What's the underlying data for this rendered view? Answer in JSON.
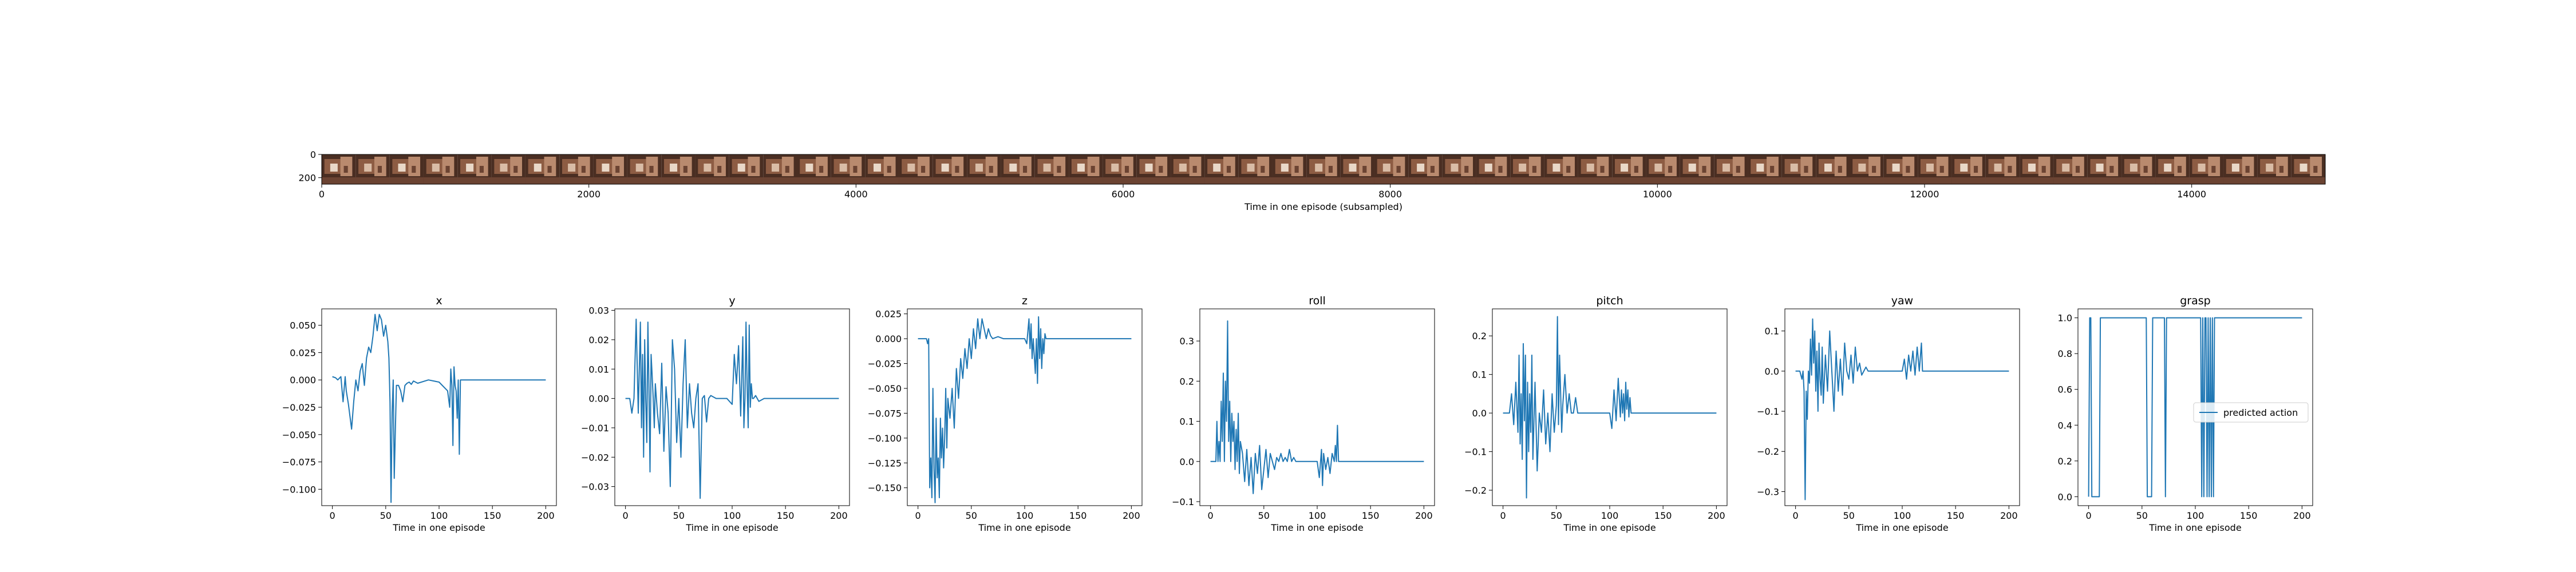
{
  "image_strip": {
    "xlabel": "Time in one episode (subsampled)",
    "xticks": [
      "0",
      "2000",
      "4000",
      "6000",
      "8000",
      "10000",
      "12000",
      "14000"
    ],
    "yticks": [
      "0",
      "200"
    ],
    "xlim": [
      0,
      15000
    ],
    "ylim": [
      0,
      256
    ],
    "frame_colors": [
      "#4a2e22",
      "#8d5c43",
      "#b98a6e",
      "#d9bca6",
      "#6b4332",
      "#e9d8c8"
    ]
  },
  "chart_data": [
    {
      "type": "line",
      "title": "x",
      "xlabel": "Time in one episode",
      "xlim": [
        -10,
        210
      ],
      "ylim": [
        -0.115,
        0.065
      ],
      "xticks": [
        "0",
        "50",
        "100",
        "150",
        "200"
      ],
      "yticks": [
        "0.050",
        "0.025",
        "0.000",
        "−0.025",
        "−0.050",
        "−0.075",
        "−0.100"
      ],
      "ytick_values": [
        0.05,
        0.025,
        0.0,
        -0.025,
        -0.05,
        -0.075,
        -0.1
      ],
      "series": [
        {
          "x": [
            0,
            3,
            5,
            8,
            10,
            12,
            13,
            15,
            18,
            20,
            22,
            24,
            26,
            28,
            30,
            32,
            34,
            36,
            38,
            40,
            42,
            44,
            46,
            48,
            50,
            52,
            53,
            54,
            55,
            56,
            57,
            58,
            60,
            62,
            64,
            66,
            68,
            70,
            72,
            74,
            76,
            80,
            90,
            100,
            108,
            110,
            111,
            112,
            113,
            114,
            115,
            116,
            117,
            118,
            119,
            120,
            125,
            150,
            200
          ],
          "y": [
            0.003,
            0.002,
            0.0,
            0.003,
            -0.02,
            0.003,
            -0.01,
            -0.022,
            -0.045,
            -0.02,
            0.0,
            -0.01,
            0.008,
            0.015,
            -0.005,
            0.02,
            0.03,
            0.025,
            0.04,
            0.06,
            0.045,
            0.06,
            0.055,
            0.04,
            0.05,
            0.035,
            0.02,
            -0.02,
            -0.112,
            -0.03,
            0.0,
            -0.09,
            -0.005,
            -0.005,
            -0.01,
            -0.02,
            -0.005,
            -0.003,
            -0.002,
            -0.004,
            -0.001,
            -0.003,
            0.0,
            -0.002,
            -0.01,
            -0.025,
            0.01,
            -0.005,
            -0.06,
            0.012,
            -0.005,
            -0.01,
            -0.035,
            0.0,
            -0.068,
            0.0,
            0.0,
            0.0,
            0.0
          ]
        }
      ]
    },
    {
      "type": "line",
      "title": "y",
      "xlabel": "Time in one episode",
      "xlim": [
        -10,
        210
      ],
      "ylim": [
        -0.0365,
        0.0305
      ],
      "xticks": [
        "0",
        "50",
        "100",
        "150",
        "200"
      ],
      "yticks": [
        "0.03",
        "0.02",
        "0.01",
        "0.00",
        "−0.01",
        "−0.02",
        "−0.03"
      ],
      "ytick_values": [
        0.03,
        0.02,
        0.01,
        0.0,
        -0.01,
        -0.02,
        -0.03
      ],
      "series": [
        {
          "x": [
            0,
            4,
            6,
            8,
            10,
            12,
            14,
            15,
            16,
            17,
            18,
            19,
            20,
            21,
            22,
            23,
            24,
            25,
            26,
            27,
            28,
            30,
            32,
            34,
            36,
            38,
            40,
            42,
            44,
            46,
            48,
            50,
            52,
            54,
            56,
            58,
            60,
            62,
            64,
            66,
            68,
            70,
            72,
            74,
            76,
            78,
            80,
            85,
            90,
            95,
            100,
            102,
            104,
            106,
            108,
            110,
            111,
            112,
            113,
            114,
            115,
            116,
            117,
            118,
            119,
            120,
            122,
            125,
            130,
            200
          ],
          "y": [
            0.0,
            0.0,
            -0.005,
            0.0,
            0.027,
            -0.005,
            0.026,
            -0.01,
            0.015,
            -0.02,
            0.02,
            0.0,
            -0.015,
            0.026,
            0.005,
            -0.025,
            0.015,
            0.008,
            0.0,
            -0.01,
            0.005,
            -0.005,
            -0.012,
            0.012,
            -0.018,
            0.004,
            -0.005,
            -0.03,
            0.02,
            0.01,
            -0.015,
            0.0,
            -0.02,
            0.005,
            0.02,
            -0.01,
            0.005,
            -0.005,
            -0.01,
            0.0,
            0.005,
            -0.034,
            0.0,
            0.001,
            -0.008,
            0.0,
            0.001,
            0.0,
            0.0,
            0.0,
            -0.002,
            0.015,
            0.005,
            0.018,
            -0.006,
            0.021,
            -0.01,
            0.0,
            0.026,
            0.005,
            -0.01,
            0.025,
            -0.003,
            0.005,
            0.0,
            0.0,
            0.001,
            -0.001,
            0.0,
            0.0
          ]
        }
      ]
    },
    {
      "type": "line",
      "title": "z",
      "xlabel": "Time in one episode",
      "xlim": [
        -10,
        210
      ],
      "ylim": [
        -0.168,
        0.03
      ],
      "xticks": [
        "0",
        "50",
        "100",
        "150",
        "200"
      ],
      "yticks": [
        "0.025",
        "0.000",
        "−0.025",
        "−0.050",
        "−0.075",
        "−0.100",
        "−0.125",
        "−0.150"
      ],
      "ytick_values": [
        0.025,
        0.0,
        -0.025,
        -0.05,
        -0.075,
        -0.1,
        -0.125,
        -0.15
      ],
      "series": [
        {
          "x": [
            0,
            3,
            5,
            8,
            9,
            10,
            11,
            12,
            13,
            14,
            15,
            16,
            17,
            18,
            19,
            20,
            21,
            22,
            23,
            24,
            25,
            26,
            27,
            28,
            30,
            32,
            34,
            36,
            38,
            40,
            42,
            44,
            46,
            48,
            50,
            52,
            54,
            56,
            58,
            60,
            62,
            64,
            66,
            68,
            70,
            75,
            80,
            90,
            100,
            102,
            104,
            105,
            106,
            107,
            108,
            110,
            111,
            112,
            113,
            114,
            115,
            116,
            117,
            118,
            119,
            120,
            125,
            200
          ],
          "y": [
            0.0,
            0.0,
            0.0,
            0.0,
            -0.005,
            0.0,
            -0.15,
            -0.12,
            -0.16,
            -0.05,
            -0.13,
            -0.165,
            -0.08,
            -0.14,
            -0.12,
            -0.16,
            -0.08,
            -0.12,
            -0.09,
            -0.13,
            -0.1,
            -0.05,
            -0.11,
            -0.06,
            -0.08,
            -0.05,
            -0.09,
            -0.03,
            -0.06,
            -0.02,
            -0.04,
            -0.01,
            -0.03,
            0.0,
            -0.02,
            0.01,
            -0.01,
            0.02,
            0.0,
            0.02,
            0.01,
            0.0,
            0.01,
            0.003,
            0.0,
            0.002,
            0.0,
            0.0,
            0.0,
            -0.005,
            0.02,
            -0.01,
            0.015,
            -0.02,
            0.0,
            -0.035,
            0.0,
            -0.045,
            0.022,
            -0.02,
            0.01,
            -0.03,
            0.0,
            -0.015,
            0.005,
            0.0,
            0.0,
            0.0
          ]
        }
      ]
    },
    {
      "type": "line",
      "title": "roll",
      "xlabel": "Time in one episode",
      "xlim": [
        -10,
        210
      ],
      "ylim": [
        -0.11,
        0.38
      ],
      "xticks": [
        "0",
        "50",
        "100",
        "150",
        "200"
      ],
      "yticks": [
        "0.3",
        "0.2",
        "0.1",
        "0.0",
        "−0.1"
      ],
      "ytick_values": [
        0.3,
        0.2,
        0.1,
        0.0,
        -0.1
      ],
      "series": [
        {
          "x": [
            0,
            3,
            5,
            6,
            7,
            8,
            9,
            10,
            11,
            12,
            13,
            14,
            15,
            16,
            17,
            18,
            19,
            20,
            21,
            22,
            23,
            24,
            25,
            26,
            27,
            28,
            30,
            32,
            34,
            36,
            38,
            40,
            42,
            44,
            46,
            48,
            50,
            52,
            54,
            56,
            58,
            60,
            62,
            64,
            66,
            68,
            70,
            72,
            74,
            76,
            78,
            80,
            85,
            90,
            95,
            100,
            102,
            104,
            105,
            106,
            108,
            110,
            112,
            114,
            116,
            117,
            118,
            119,
            120,
            125,
            200
          ],
          "y": [
            0.0,
            0.0,
            0.0,
            0.1,
            0.0,
            0.05,
            0.0,
            0.15,
            0.05,
            0.22,
            0.0,
            0.2,
            0.1,
            0.35,
            0.05,
            0.15,
            0.0,
            0.12,
            0.05,
            0.1,
            -0.02,
            0.08,
            0.0,
            0.12,
            -0.03,
            0.05,
            0.02,
            -0.05,
            0.03,
            -0.06,
            0.01,
            -0.08,
            0.02,
            -0.03,
            0.04,
            -0.07,
            -0.02,
            0.03,
            -0.04,
            0.02,
            0.0,
            -0.02,
            0.01,
            0.0,
            0.02,
            0.0,
            0.01,
            0.0,
            0.03,
            0.0,
            0.01,
            0.0,
            0.0,
            0.0,
            0.0,
            0.0,
            -0.04,
            0.03,
            -0.06,
            0.02,
            -0.02,
            0.01,
            -0.03,
            0.02,
            0.0,
            0.04,
            0.0,
            0.09,
            0.0,
            0.0,
            0.0
          ]
        }
      ]
    },
    {
      "type": "line",
      "title": "pitch",
      "xlabel": "Time in one episode",
      "xlim": [
        -10,
        210
      ],
      "ylim": [
        -0.24,
        0.27
      ],
      "xticks": [
        "0",
        "50",
        "100",
        "150",
        "200"
      ],
      "yticks": [
        "0.2",
        "0.1",
        "0.0",
        "−0.1",
        "−0.2"
      ],
      "ytick_values": [
        0.2,
        0.1,
        0.0,
        -0.1,
        -0.2
      ],
      "series": [
        {
          "x": [
            0,
            4,
            6,
            8,
            10,
            12,
            14,
            15,
            16,
            17,
            18,
            19,
            20,
            21,
            22,
            23,
            24,
            25,
            26,
            27,
            28,
            30,
            32,
            34,
            36,
            38,
            40,
            42,
            44,
            46,
            48,
            50,
            51,
            52,
            53,
            54,
            55,
            56,
            58,
            60,
            62,
            64,
            66,
            68,
            70,
            75,
            80,
            90,
            100,
            102,
            104,
            106,
            108,
            110,
            111,
            112,
            113,
            114,
            115,
            116,
            117,
            118,
            119,
            120,
            125,
            200
          ],
          "y": [
            0.0,
            0.0,
            0.0,
            0.05,
            -0.03,
            0.08,
            -0.05,
            0.15,
            -0.08,
            0.05,
            -0.12,
            0.18,
            -0.02,
            0.15,
            -0.22,
            0.08,
            -0.1,
            0.05,
            -0.05,
            0.15,
            -0.12,
            0.08,
            -0.15,
            0.0,
            -0.05,
            0.06,
            -0.08,
            0.0,
            -0.1,
            0.05,
            -0.05,
            0.02,
            0.25,
            -0.03,
            0.15,
            0.05,
            -0.05,
            0.02,
            0.1,
            0.0,
            0.05,
            0.0,
            0.0,
            0.04,
            0.0,
            0.0,
            0.0,
            0.0,
            0.0,
            -0.04,
            0.06,
            -0.02,
            0.09,
            -0.01,
            0.06,
            0.0,
            0.05,
            -0.02,
            0.08,
            0.01,
            0.06,
            -0.01,
            0.04,
            0.0,
            0.0,
            0.0
          ]
        }
      ]
    },
    {
      "type": "line",
      "title": "yaw",
      "xlabel": "Time in one episode",
      "xlim": [
        -10,
        210
      ],
      "ylim": [
        -0.335,
        0.155
      ],
      "xticks": [
        "0",
        "50",
        "100",
        "150",
        "200"
      ],
      "yticks": [
        "0.1",
        "0.0",
        "−0.1",
        "−0.2",
        "−0.3"
      ],
      "ytick_values": [
        0.1,
        0.0,
        -0.1,
        -0.2,
        -0.3
      ],
      "series": [
        {
          "x": [
            0,
            4,
            6,
            7,
            8,
            9,
            10,
            11,
            12,
            13,
            14,
            15,
            16,
            17,
            18,
            19,
            20,
            21,
            22,
            23,
            24,
            25,
            26,
            28,
            30,
            32,
            34,
            36,
            38,
            40,
            42,
            44,
            46,
            48,
            50,
            52,
            54,
            56,
            58,
            60,
            62,
            64,
            66,
            68,
            70,
            75,
            80,
            90,
            100,
            102,
            104,
            106,
            108,
            110,
            112,
            114,
            116,
            118,
            119,
            120,
            125,
            200
          ],
          "y": [
            0.0,
            0.0,
            -0.02,
            0.0,
            -0.05,
            -0.32,
            -0.05,
            -0.12,
            0.0,
            -0.03,
            0.08,
            -0.01,
            0.13,
            0.02,
            0.1,
            -0.05,
            0.05,
            -0.1,
            0.07,
            -0.02,
            -0.06,
            0.06,
            -0.08,
            0.04,
            -0.05,
            0.1,
            0.0,
            -0.1,
            0.05,
            -0.05,
            0.03,
            -0.06,
            0.07,
            0.0,
            -0.02,
            0.04,
            -0.03,
            0.06,
            0.0,
            0.02,
            -0.01,
            0.0,
            0.01,
            0.0,
            0.0,
            0.0,
            0.0,
            0.0,
            0.0,
            0.03,
            -0.02,
            0.04,
            0.0,
            0.05,
            -0.01,
            0.06,
            0.0,
            0.07,
            0.0,
            0.0,
            0.0,
            0.0
          ]
        }
      ]
    },
    {
      "type": "line",
      "title": "grasp",
      "xlabel": "Time in one episode",
      "xlim": [
        -10,
        210
      ],
      "ylim": [
        -0.05,
        1.05
      ],
      "xticks": [
        "0",
        "50",
        "100",
        "150",
        "200"
      ],
      "yticks": [
        "1.0",
        "0.8",
        "0.6",
        "0.4",
        "0.2",
        "0.0"
      ],
      "ytick_values": [
        1.0,
        0.8,
        0.6,
        0.4,
        0.2,
        0.0
      ],
      "legend": {
        "label": "predicted action",
        "position": "center-right"
      },
      "series": [
        {
          "name": "predicted action",
          "x": [
            0,
            1,
            2,
            3,
            4,
            10,
            11,
            12,
            54,
            55,
            56,
            59,
            60,
            61,
            71,
            72,
            73,
            75,
            76,
            77,
            105,
            106,
            107,
            108,
            109,
            110,
            111,
            112,
            113,
            114,
            115,
            116,
            117,
            118,
            119,
            120,
            200
          ],
          "y": [
            0,
            1,
            1,
            0,
            0,
            0,
            1,
            1,
            1,
            0,
            0,
            0,
            1,
            1,
            1,
            0,
            1,
            1,
            1,
            1,
            1,
            0,
            1,
            0,
            1,
            1,
            0,
            1,
            0,
            1,
            0,
            1,
            0,
            1,
            1,
            1,
            1
          ]
        }
      ]
    }
  ]
}
